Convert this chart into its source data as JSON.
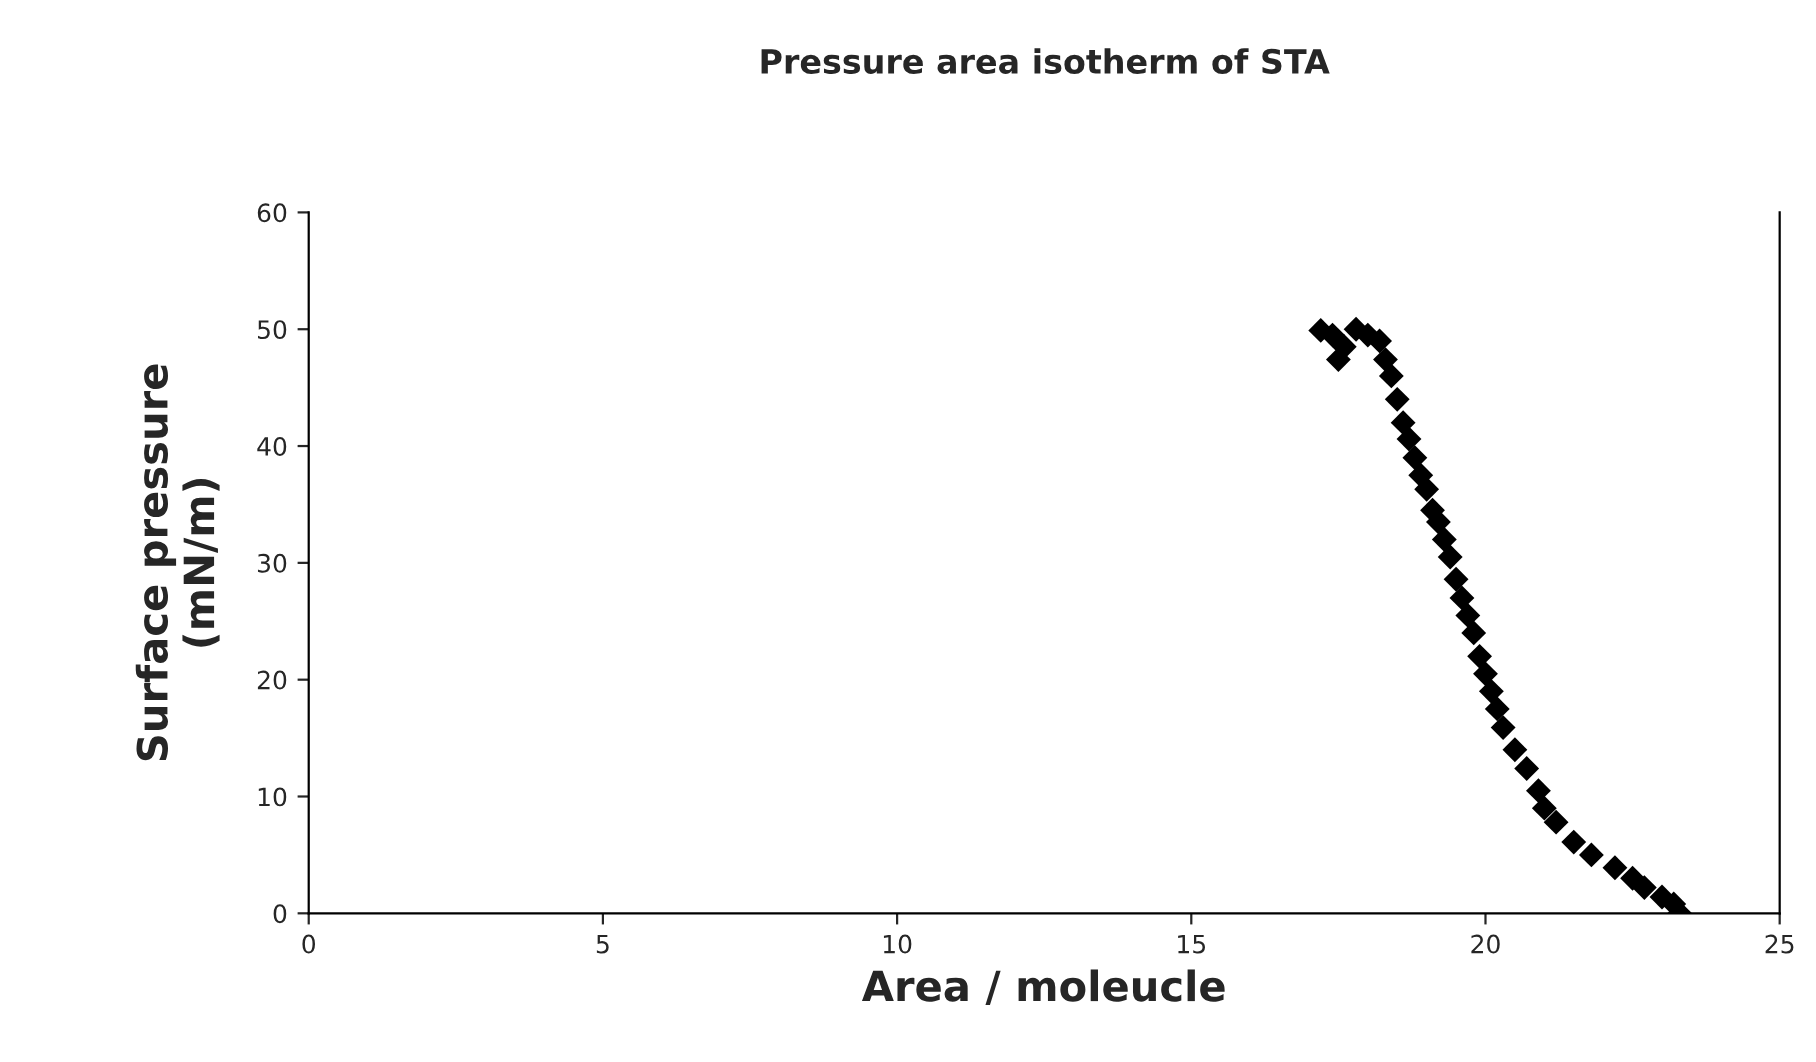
{
  "chart_data": {
    "type": "scatter",
    "title": "Pressure area isotherm of STA",
    "xlabel": "Area / moleucle",
    "ylabel": "Surface pressure\n(mN/m)",
    "series": [
      {
        "color": "#000000",
        "x": [
          17.2,
          17.4,
          17.5,
          17.6,
          17.8,
          18.0,
          18.2,
          18.3,
          18.4,
          18.5,
          18.6,
          18.7,
          18.8,
          18.9,
          19.0,
          19.1,
          19.2,
          19.3,
          19.4,
          19.5,
          19.6,
          19.7,
          19.8,
          19.9,
          20.0,
          20.1,
          20.2,
          20.3,
          20.5,
          20.7,
          20.9,
          21.0,
          21.2,
          21.5,
          21.8,
          22.2,
          22.5,
          22.7,
          23.0,
          23.2,
          23.3
        ],
        "values": [
          49.9,
          49.5,
          47.4,
          48.5,
          50.0,
          49.5,
          49.0,
          47.4,
          46.0,
          44.0,
          42.0,
          40.6,
          39.0,
          37.5,
          36.3,
          34.5,
          33.5,
          32.0,
          30.5,
          28.6,
          27.0,
          25.5,
          24.0,
          22.0,
          20.5,
          19.0,
          17.5,
          15.9,
          14.0,
          12.4,
          10.5,
          9.0,
          7.8,
          6.1,
          5.0,
          3.9,
          3.0,
          2.2,
          1.4,
          0.8,
          0.0
        ]
      }
    ],
    "marker": "diamond",
    "xlim": [
      0,
      25
    ],
    "ylim": [
      0,
      60
    ],
    "xticks": [
      0,
      5,
      10,
      15,
      20,
      25
    ],
    "yticks": [
      0,
      10,
      20,
      30,
      40,
      50,
      60
    ],
    "grid": false,
    "legend": false
  }
}
